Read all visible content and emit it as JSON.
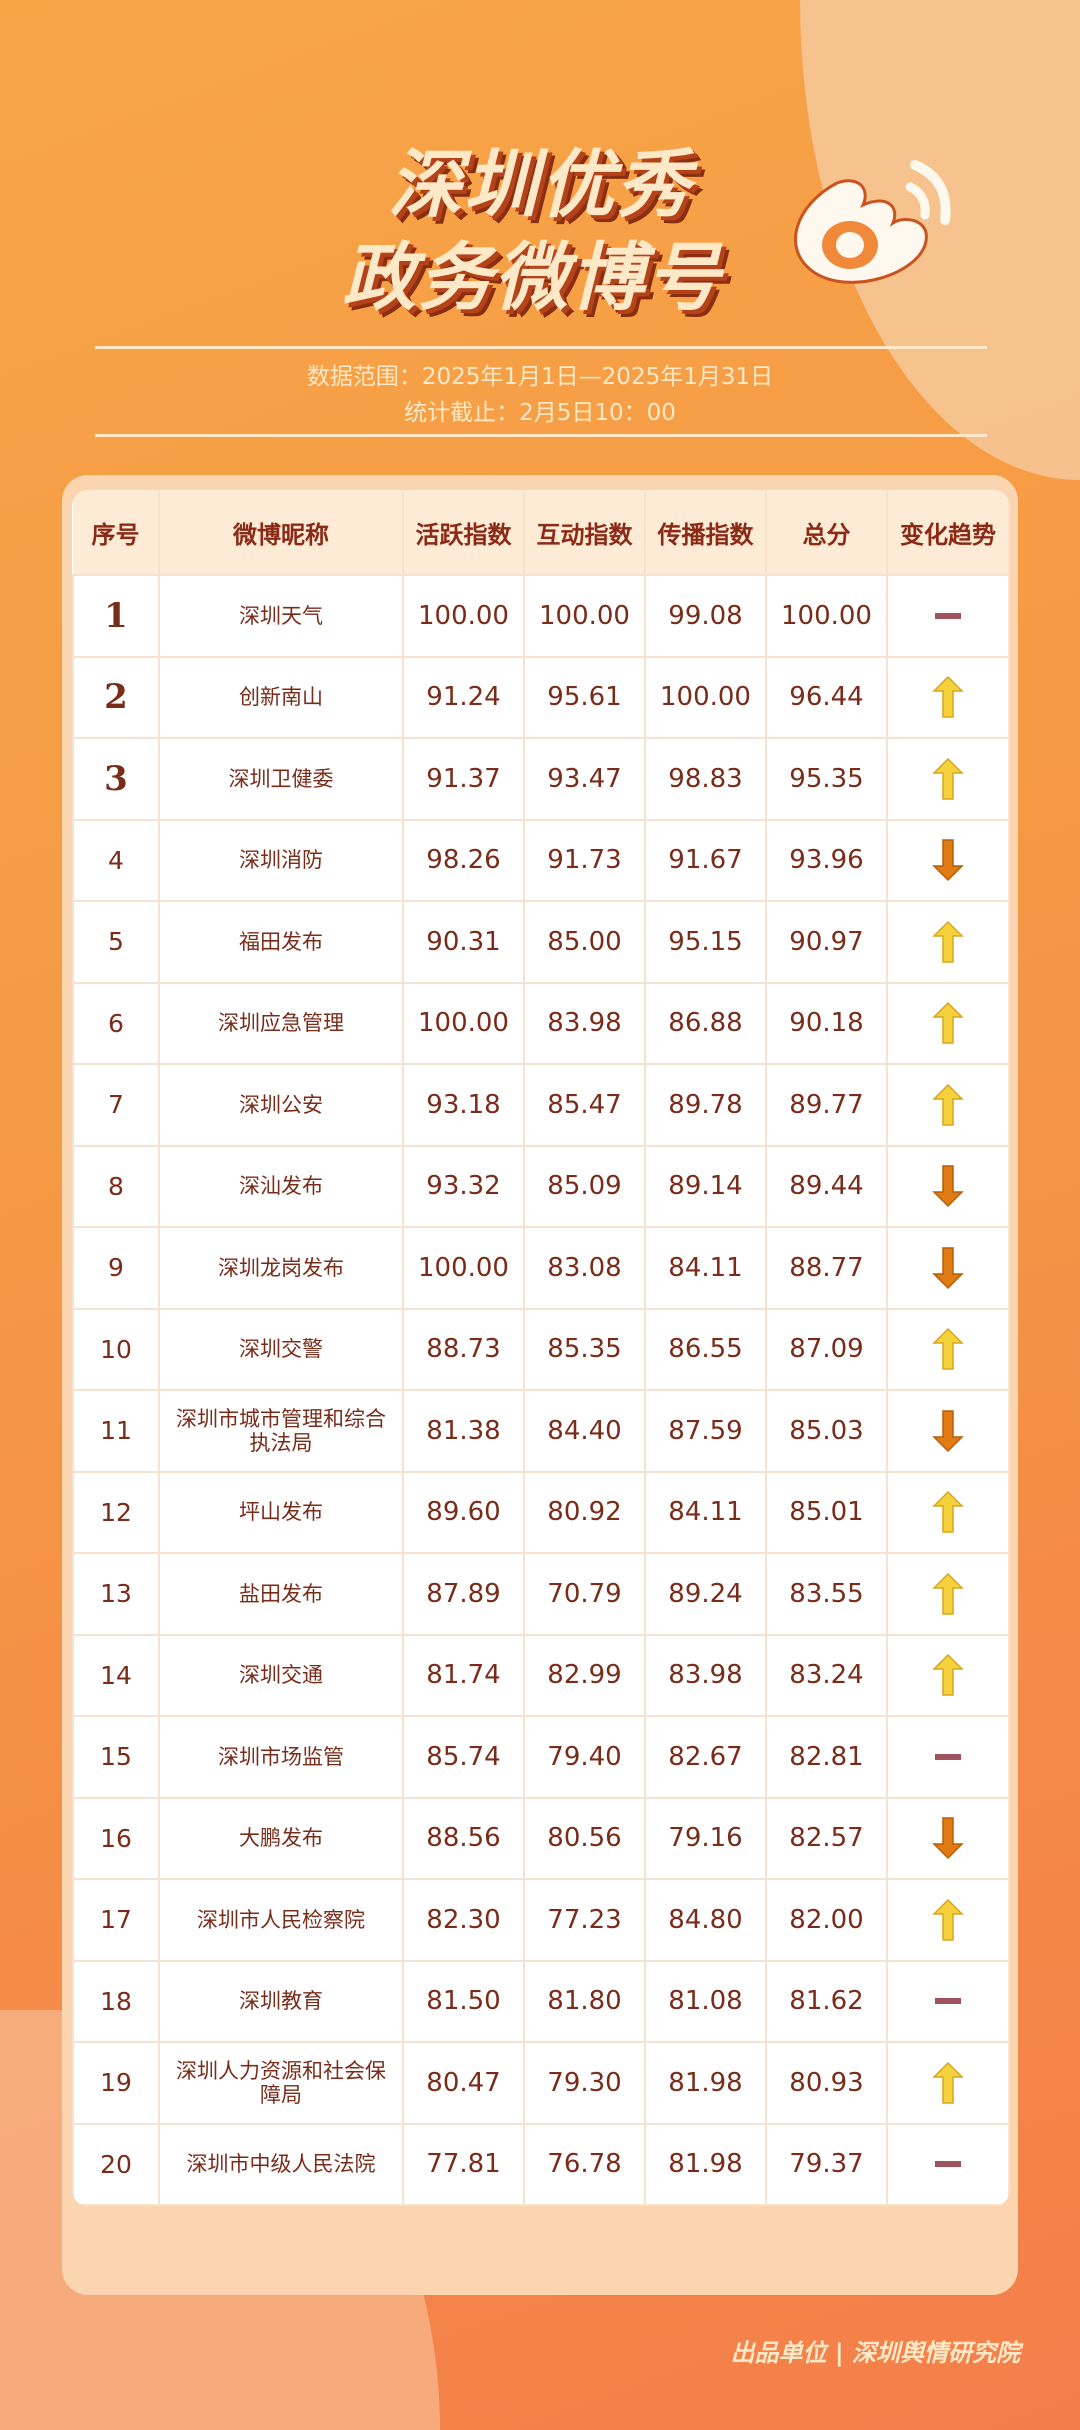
{
  "title": {
    "line1": "深圳优秀",
    "line2": "政务微博号"
  },
  "subtitle": {
    "range": "数据范围：2025年1月1日—2025年1月31日",
    "cutoff": "统计截止：2月5日10：00"
  },
  "colors": {
    "up": "#f5d23c",
    "down": "#e07a12",
    "flat": "#a0525e",
    "text": "#7a2c1a"
  },
  "table": {
    "headers": [
      "序号",
      "微博昵称",
      "活跃指数",
      "互动指数",
      "传播指数",
      "总分",
      "变化趋势"
    ],
    "rows": [
      {
        "rank": "1",
        "name": "深圳天气",
        "active": "100.00",
        "interact": "100.00",
        "spread": "99.08",
        "total": "100.00",
        "trend": "flat"
      },
      {
        "rank": "2",
        "name": "创新南山",
        "active": "91.24",
        "interact": "95.61",
        "spread": "100.00",
        "total": "96.44",
        "trend": "up"
      },
      {
        "rank": "3",
        "name": "深圳卫健委",
        "active": "91.37",
        "interact": "93.47",
        "spread": "98.83",
        "total": "95.35",
        "trend": "up"
      },
      {
        "rank": "4",
        "name": "深圳消防",
        "active": "98.26",
        "interact": "91.73",
        "spread": "91.67",
        "total": "93.96",
        "trend": "down"
      },
      {
        "rank": "5",
        "name": "福田发布",
        "active": "90.31",
        "interact": "85.00",
        "spread": "95.15",
        "total": "90.97",
        "trend": "up"
      },
      {
        "rank": "6",
        "name": "深圳应急管理",
        "active": "100.00",
        "interact": "83.98",
        "spread": "86.88",
        "total": "90.18",
        "trend": "up"
      },
      {
        "rank": "7",
        "name": "深圳公安",
        "active": "93.18",
        "interact": "85.47",
        "spread": "89.78",
        "total": "89.77",
        "trend": "up"
      },
      {
        "rank": "8",
        "name": "深汕发布",
        "active": "93.32",
        "interact": "85.09",
        "spread": "89.14",
        "total": "89.44",
        "trend": "down"
      },
      {
        "rank": "9",
        "name": "深圳龙岗发布",
        "active": "100.00",
        "interact": "83.08",
        "spread": "84.11",
        "total": "88.77",
        "trend": "down"
      },
      {
        "rank": "10",
        "name": "深圳交警",
        "active": "88.73",
        "interact": "85.35",
        "spread": "86.55",
        "total": "87.09",
        "trend": "up"
      },
      {
        "rank": "11",
        "name": "深圳市城市管理和综合执法局",
        "active": "81.38",
        "interact": "84.40",
        "spread": "87.59",
        "total": "85.03",
        "trend": "down"
      },
      {
        "rank": "12",
        "name": "坪山发布",
        "active": "89.60",
        "interact": "80.92",
        "spread": "84.11",
        "total": "85.01",
        "trend": "up"
      },
      {
        "rank": "13",
        "name": "盐田发布",
        "active": "87.89",
        "interact": "70.79",
        "spread": "89.24",
        "total": "83.55",
        "trend": "up"
      },
      {
        "rank": "14",
        "name": "深圳交通",
        "active": "81.74",
        "interact": "82.99",
        "spread": "83.98",
        "total": "83.24",
        "trend": "up"
      },
      {
        "rank": "15",
        "name": "深圳市场监管",
        "active": "85.74",
        "interact": "79.40",
        "spread": "82.67",
        "total": "82.81",
        "trend": "flat"
      },
      {
        "rank": "16",
        "name": "大鹏发布",
        "active": "88.56",
        "interact": "80.56",
        "spread": "79.16",
        "total": "82.57",
        "trend": "down"
      },
      {
        "rank": "17",
        "name": "深圳市人民检察院",
        "active": "82.30",
        "interact": "77.23",
        "spread": "84.80",
        "total": "82.00",
        "trend": "up"
      },
      {
        "rank": "18",
        "name": "深圳教育",
        "active": "81.50",
        "interact": "81.80",
        "spread": "81.08",
        "total": "81.62",
        "trend": "flat"
      },
      {
        "rank": "19",
        "name": "深圳人力资源和社会保障局",
        "active": "80.47",
        "interact": "79.30",
        "spread": "81.98",
        "total": "80.93",
        "trend": "up"
      },
      {
        "rank": "20",
        "name": "深圳市中级人民法院",
        "active": "77.81",
        "interact": "76.78",
        "spread": "81.98",
        "total": "79.37",
        "trend": "flat"
      }
    ]
  },
  "footer": "出品单位 | 深圳舆情研究院",
  "logo_icon": "weibo-logo-icon"
}
